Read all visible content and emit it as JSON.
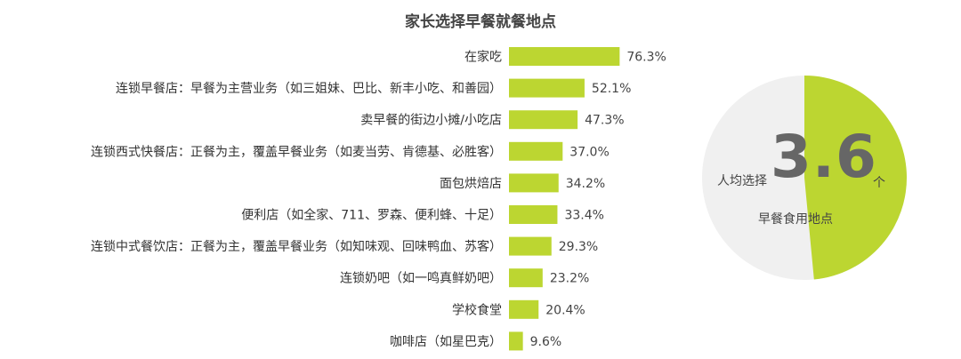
{
  "chart_data": {
    "type": "bar",
    "orientation": "horizontal",
    "title": "家长选择早餐就餐地点",
    "categories": [
      "在家吃",
      "连锁早餐店：早餐为主营业务（如三姐妹、巴比、新丰小吃、和善园）",
      "卖早餐的街边小摊/小吃店",
      "连锁西式快餐店：正餐为主，覆盖早餐业务（如麦当劳、肯德基、必胜客）",
      "面包烘焙店",
      "便利店（如全家、711、罗森、便利蜂、十足）",
      "连锁中式餐饮店：正餐为主，覆盖早餐业务（如知味观、回味鸭血、苏客）",
      "连锁奶吧（如一鸣真鲜奶吧）",
      "学校食堂",
      "咖啡店（如星巴克）"
    ],
    "values": [
      76.3,
      52.1,
      47.3,
      37.0,
      34.2,
      33.4,
      29.3,
      23.2,
      20.4,
      9.6
    ],
    "value_labels": [
      "76.3%",
      "52.1%",
      "47.3%",
      "37.0%",
      "34.2%",
      "33.4%",
      "29.3%",
      "23.2%",
      "20.4%",
      "9.6%"
    ],
    "bar_color": "#bcd631"
  },
  "donut": {
    "left_label": "人均选择",
    "number": "3.6",
    "unit": "个",
    "bottom_label": "早餐食用地点",
    "fill_fraction": 0.485,
    "fill_color": "#bcd631",
    "track_color": "#f0f0f0"
  }
}
